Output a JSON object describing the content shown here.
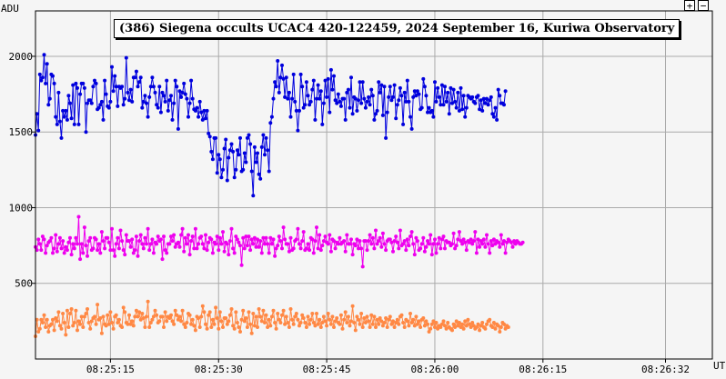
{
  "window": {
    "zoom_in_label": "+",
    "zoom_out_label": "−"
  },
  "chart_data": {
    "type": "line",
    "title": "(386) Siegena occults UCAC4 420-122459, 2024 September 16, Kuriwa Observatory",
    "ylabel": "ADU",
    "xlabel": "UT",
    "ylim": [
      0,
      2300
    ],
    "xlim": [
      "08:25:04.6",
      "08:26:38.5"
    ],
    "x_ticks": [
      "08:25:15",
      "08:25:30",
      "08:25:45",
      "08:26:00",
      "08:26:15",
      "08:26:32"
    ],
    "y_ticks": [
      500,
      1000,
      1500,
      2000
    ],
    "grid": true,
    "legend": "none",
    "sample_interval_s": 0.2,
    "series": [
      {
        "color": "#0000dd",
        "values": [
          1480,
          1620,
          1510,
          1880,
          1840,
          1860,
          2010,
          1820,
          1950,
          1680,
          1720,
          1880,
          1870,
          1820,
          1600,
          1550,
          1760,
          1570,
          1460,
          1640,
          1600,
          1640,
          1580,
          1740,
          1690,
          1590,
          1810,
          1550,
          1820,
          1790,
          1550,
          1750,
          1820,
          1820,
          1790,
          1500,
          1690,
          1710,
          1710,
          1690,
          1800,
          1840,
          1820,
          1650,
          1660,
          1680,
          1700,
          1580,
          1840,
          1750,
          1670,
          1660,
          1700,
          1930,
          1770,
          1870,
          1800,
          1670,
          1800,
          1790,
          1800,
          1680,
          1720,
          1990,
          1760,
          1710,
          1780,
          1700,
          1860,
          1860,
          1900,
          1800,
          1830,
          1860,
          1660,
          1700,
          1740,
          1690,
          1600,
          1730,
          1800,
          1860,
          1800,
          1760,
          1680,
          1660,
          1800,
          1630,
          1760,
          1740,
          1700,
          1840,
          1640,
          1710,
          1740,
          1580,
          1690,
          1840,
          1800,
          1520,
          1770,
          1730,
          1760,
          1820,
          1750,
          1720,
          1600,
          1690,
          1840,
          1720,
          1650,
          1640,
          1660,
          1600,
          1700,
          1630,
          1580,
          1640,
          1590,
          1640,
          1490,
          1470,
          1370,
          1320,
          1460,
          1460,
          1230,
          1350,
          1320,
          1200,
          1250,
          1390,
          1450,
          1180,
          1330,
          1380,
          1420,
          1370,
          1200,
          1250,
          1380,
          1350,
          1460,
          1240,
          1250,
          1360,
          1300,
          1460,
          1480,
          1420,
          1240,
          1080,
          1400,
          1300,
          1360,
          1220,
          1190,
          1400,
          1480,
          1350,
          1460,
          1380,
          1240,
          1560,
          1600,
          1720,
          1830,
          1800,
          1970,
          1760,
          1860,
          1940,
          1850,
          1730,
          1860,
          1720,
          1760,
          1600,
          1720,
          1880,
          1700,
          1640,
          1510,
          1640,
          1880,
          1800,
          1660,
          1680,
          1830,
          1740,
          1680,
          1700,
          1780,
          1840,
          1580,
          1720,
          1810,
          1720,
          1770,
          1550,
          1690,
          1840,
          1730,
          1850,
          1630,
          1910,
          1780,
          1870,
          1710,
          1690,
          1750,
          1700,
          1670,
          1720,
          1720,
          1580,
          1760,
          1780,
          1660,
          1860,
          1620,
          1730,
          1720,
          1640,
          1710,
          1830,
          1690,
          1830,
          1720,
          1660,
          1700,
          1730,
          1680,
          1780,
          1740,
          1580,
          1620,
          1640,
          1830,
          1760,
          1810,
          1610,
          1800,
          1460,
          1630,
          1730,
          1800,
          1710,
          1730,
          1810,
          1590,
          1680,
          1710,
          1790,
          1740,
          1550,
          1760,
          1700,
          1840,
          1700,
          1600,
          1520,
          1730,
          1770,
          1740,
          1770,
          1750,
          1650,
          1660,
          1850,
          1800,
          1740,
          1630,
          1660,
          1630,
          1640,
          1600,
          1830,
          1700,
          1790,
          1730,
          1680,
          1810,
          1680,
          1800,
          1700,
          1760,
          1620,
          1790,
          1690,
          1780,
          1700,
          1660,
          1760,
          1640,
          1790,
          1650,
          1740,
          1600,
          1660,
          1740,
          1730,
          1720,
          1730,
          1700,
          1690,
          1730,
          1740,
          1650,
          1710,
          1640,
          1720,
          1690,
          1720,
          1680,
          1710,
          1730,
          1620,
          1600,
          1660,
          1580,
          1780,
          1740,
          1690,
          1690,
          1680,
          1770
        ]
      },
      {
        "color": "#ee00ee",
        "values": [
          740,
          720,
          790,
          760,
          720,
          810,
          790,
          700,
          750,
          770,
          780,
          800,
          700,
          730,
          820,
          710,
          760,
          800,
          730,
          780,
          700,
          740,
          720,
          770,
          800,
          690,
          760,
          730,
          800,
          760,
          940,
          660,
          760,
          700,
          870,
          750,
          680,
          780,
          800,
          720,
          730,
          800,
          790,
          720,
          760,
          700,
          840,
          780,
          730,
          800,
          800,
          770,
          720,
          860,
          720,
          680,
          760,
          800,
          730,
          850,
          780,
          720,
          690,
          820,
          780,
          780,
          740,
          790,
          700,
          720,
          810,
          680,
          780,
          820,
          760,
          730,
          800,
          760,
          860,
          720,
          760,
          790,
          700,
          770,
          760,
          810,
          780,
          790,
          660,
          810,
          720,
          700,
          760,
          760,
          810,
          780,
          820,
          740,
          760,
          770,
          740,
          820,
          860,
          710,
          800,
          760,
          820,
          690,
          780,
          810,
          730,
          860,
          730,
          760,
          800,
          810,
          760,
          730,
          820,
          720,
          770,
          800,
          790,
          700,
          770,
          760,
          810,
          720,
          800,
          760,
          840,
          710,
          770,
          760,
          690,
          780,
          860,
          730,
          700,
          810,
          790,
          770,
          750,
          620,
          800,
          730,
          810,
          750,
          810,
          720,
          790,
          760,
          800,
          740,
          790,
          740,
          780,
          700,
          800,
          760,
          800,
          760,
          700,
          800,
          760,
          790,
          680,
          730,
          750,
          810,
          780,
          730,
          870,
          790,
          760,
          760,
          710,
          800,
          720,
          730,
          780,
          790,
          860,
          760,
          730,
          780,
          840,
          720,
          730,
          760,
          720,
          800,
          790,
          700,
          780,
          870,
          730,
          820,
          720,
          750,
          780,
          810,
          770,
          760,
          820,
          710,
          790,
          780,
          730,
          770,
          760,
          800,
          760,
          770,
          780,
          710,
          820,
          760,
          760,
          790,
          690,
          760,
          750,
          790,
          730,
          780,
          730,
          610,
          780,
          780,
          720,
          780,
          820,
          760,
          800,
          730,
          850,
          760,
          780,
          800,
          740,
          830,
          760,
          720,
          780,
          790,
          790,
          770,
          710,
          780,
          810,
          770,
          730,
          850,
          750,
          760,
          780,
          720,
          790,
          750,
          810,
          840,
          760,
          690,
          800,
          780,
          720,
          730,
          760,
          800,
          710,
          740,
          780,
          760,
          820,
          690,
          760,
          790,
          700,
          760,
          800,
          730,
          790,
          810,
          730,
          780,
          770,
          770,
          750,
          760,
          830,
          730,
          750,
          790,
          840,
          780,
          760,
          790,
          770,
          720,
          780,
          770,
          790,
          760,
          780,
          840,
          700,
          790,
          740,
          780,
          760,
          790,
          740,
          820,
          760,
          700,
          780,
          750,
          790,
          760,
          780,
          770,
          740,
          820,
          760,
          780,
          700,
          770,
          790,
          780,
          770,
          740,
          780,
          760,
          780,
          770,
          760,
          760,
          770
        ]
      },
      {
        "color": "#ff8844",
        "values": [
          150,
          260,
          180,
          200,
          260,
          240,
          290,
          210,
          260,
          180,
          220,
          230,
          260,
          190,
          270,
          250,
          310,
          220,
          200,
          300,
          240,
          160,
          320,
          210,
          300,
          330,
          220,
          240,
          320,
          190,
          250,
          230,
          280,
          210,
          280,
          300,
          330,
          240,
          200,
          250,
          270,
          280,
          230,
          360,
          260,
          270,
          170,
          280,
          230,
          220,
          290,
          230,
          310,
          240,
          200,
          280,
          290,
          240,
          260,
          220,
          210,
          340,
          310,
          240,
          230,
          290,
          230,
          250,
          220,
          280,
          320,
          280,
          310,
          260,
          300,
          270,
          210,
          280,
          380,
          210,
          240,
          260,
          280,
          320,
          290,
          240,
          250,
          280,
          280,
          210,
          310,
          250,
          280,
          270,
          290,
          250,
          230,
          320,
          290,
          260,
          280,
          250,
          320,
          230,
          210,
          240,
          300,
          290,
          230,
          260,
          220,
          190,
          280,
          270,
          210,
          280,
          350,
          310,
          230,
          200,
          290,
          310,
          210,
          260,
          230,
          340,
          270,
          200,
          310,
          250,
          210,
          270,
          270,
          230,
          250,
          290,
          330,
          220,
          200,
          310,
          240,
          210,
          180,
          260,
          320,
          250,
          270,
          210,
          310,
          230,
          170,
          300,
          220,
          280,
          210,
          330,
          280,
          250,
          320,
          240,
          290,
          210,
          260,
          220,
          280,
          320,
          240,
          200,
          300,
          260,
          240,
          290,
          320,
          230,
          280,
          240,
          210,
          330,
          260,
          230,
          280,
          300,
          260,
          220,
          240,
          290,
          270,
          240,
          210,
          280,
          230,
          260,
          300,
          240,
          220,
          300,
          230,
          260,
          210,
          240,
          280,
          250,
          220,
          300,
          260,
          230,
          280,
          210,
          250,
          270,
          240,
          230,
          290,
          200,
          260,
          310,
          240,
          280,
          220,
          250,
          350,
          240,
          190,
          280,
          260,
          230,
          300,
          210,
          270,
          240,
          280,
          250,
          210,
          290,
          230,
          280,
          210,
          260,
          230,
          270,
          250,
          220,
          240,
          270,
          210,
          260,
          280,
          230,
          250,
          210,
          240,
          260,
          230,
          280,
          290,
          240,
          210,
          260,
          250,
          220,
          300,
          240,
          260,
          220,
          280,
          230,
          250,
          210,
          260,
          270,
          220,
          250,
          230,
          180,
          200,
          230,
          250,
          210,
          240,
          200,
          220,
          210,
          230,
          250,
          220,
          200,
          240,
          210,
          200,
          190,
          230,
          210,
          250,
          220,
          240,
          210,
          230,
          200,
          250,
          220,
          260,
          230,
          210,
          240,
          220,
          200,
          210,
          230,
          190,
          220,
          240,
          210,
          200,
          230,
          250,
          260,
          220,
          210,
          240,
          200,
          230,
          220,
          180,
          210,
          240,
          230,
          200,
          220,
          210
        ]
      }
    ]
  }
}
